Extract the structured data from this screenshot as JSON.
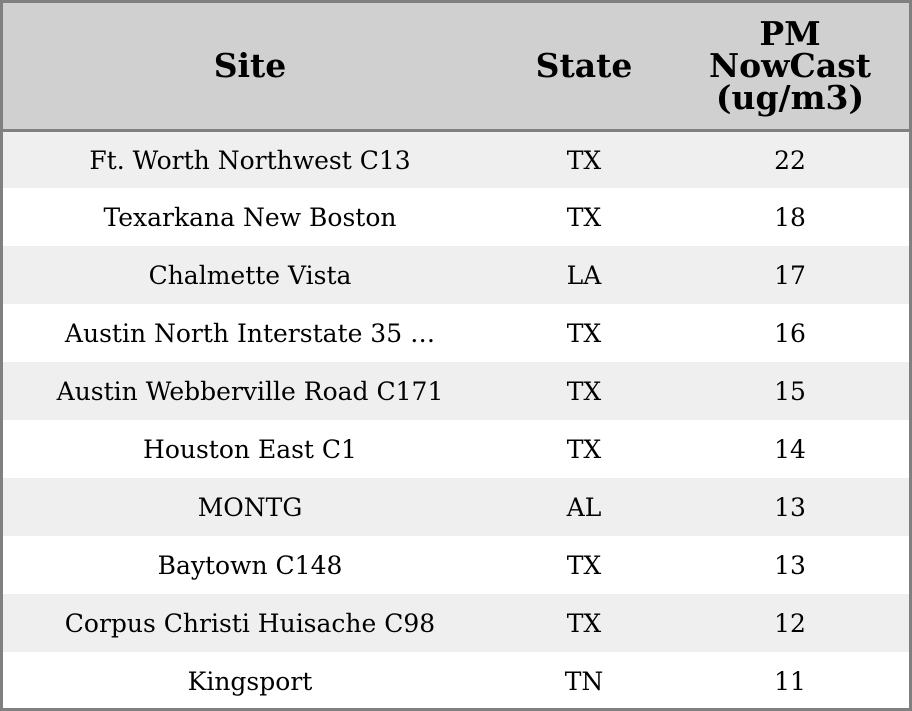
{
  "chart_data": {
    "type": "table",
    "columns": [
      "Site",
      "State",
      "PM NowCast (ug/m3)"
    ],
    "header_lines": {
      "site": [
        "Site"
      ],
      "state": [
        "State"
      ],
      "pm": [
        "PM",
        "NowCast",
        "(ug/m3)"
      ]
    },
    "rows": [
      {
        "site": "Ft. Worth Northwest C13",
        "state": "TX",
        "pm": 22
      },
      {
        "site": "Texarkana New Boston",
        "state": "TX",
        "pm": 18
      },
      {
        "site": "Chalmette Vista",
        "state": "LA",
        "pm": 17
      },
      {
        "site": "Austin North Interstate 35 …",
        "state": "TX",
        "pm": 16
      },
      {
        "site": "Austin Webberville Road C171",
        "state": "TX",
        "pm": 15
      },
      {
        "site": "Houston East C1",
        "state": "TX",
        "pm": 14
      },
      {
        "site": "MONTG",
        "state": "AL",
        "pm": 13
      },
      {
        "site": "Baytown C148",
        "state": "TX",
        "pm": 13
      },
      {
        "site": "Corpus Christi Huisache C98",
        "state": "TX",
        "pm": 12
      },
      {
        "site": "Kingsport",
        "state": "TN",
        "pm": 11
      }
    ]
  },
  "colors": {
    "header_bg": "#d0d0d0",
    "stripe_bg": "#efefef",
    "row_bg": "#ffffff",
    "border": "#808080"
  }
}
